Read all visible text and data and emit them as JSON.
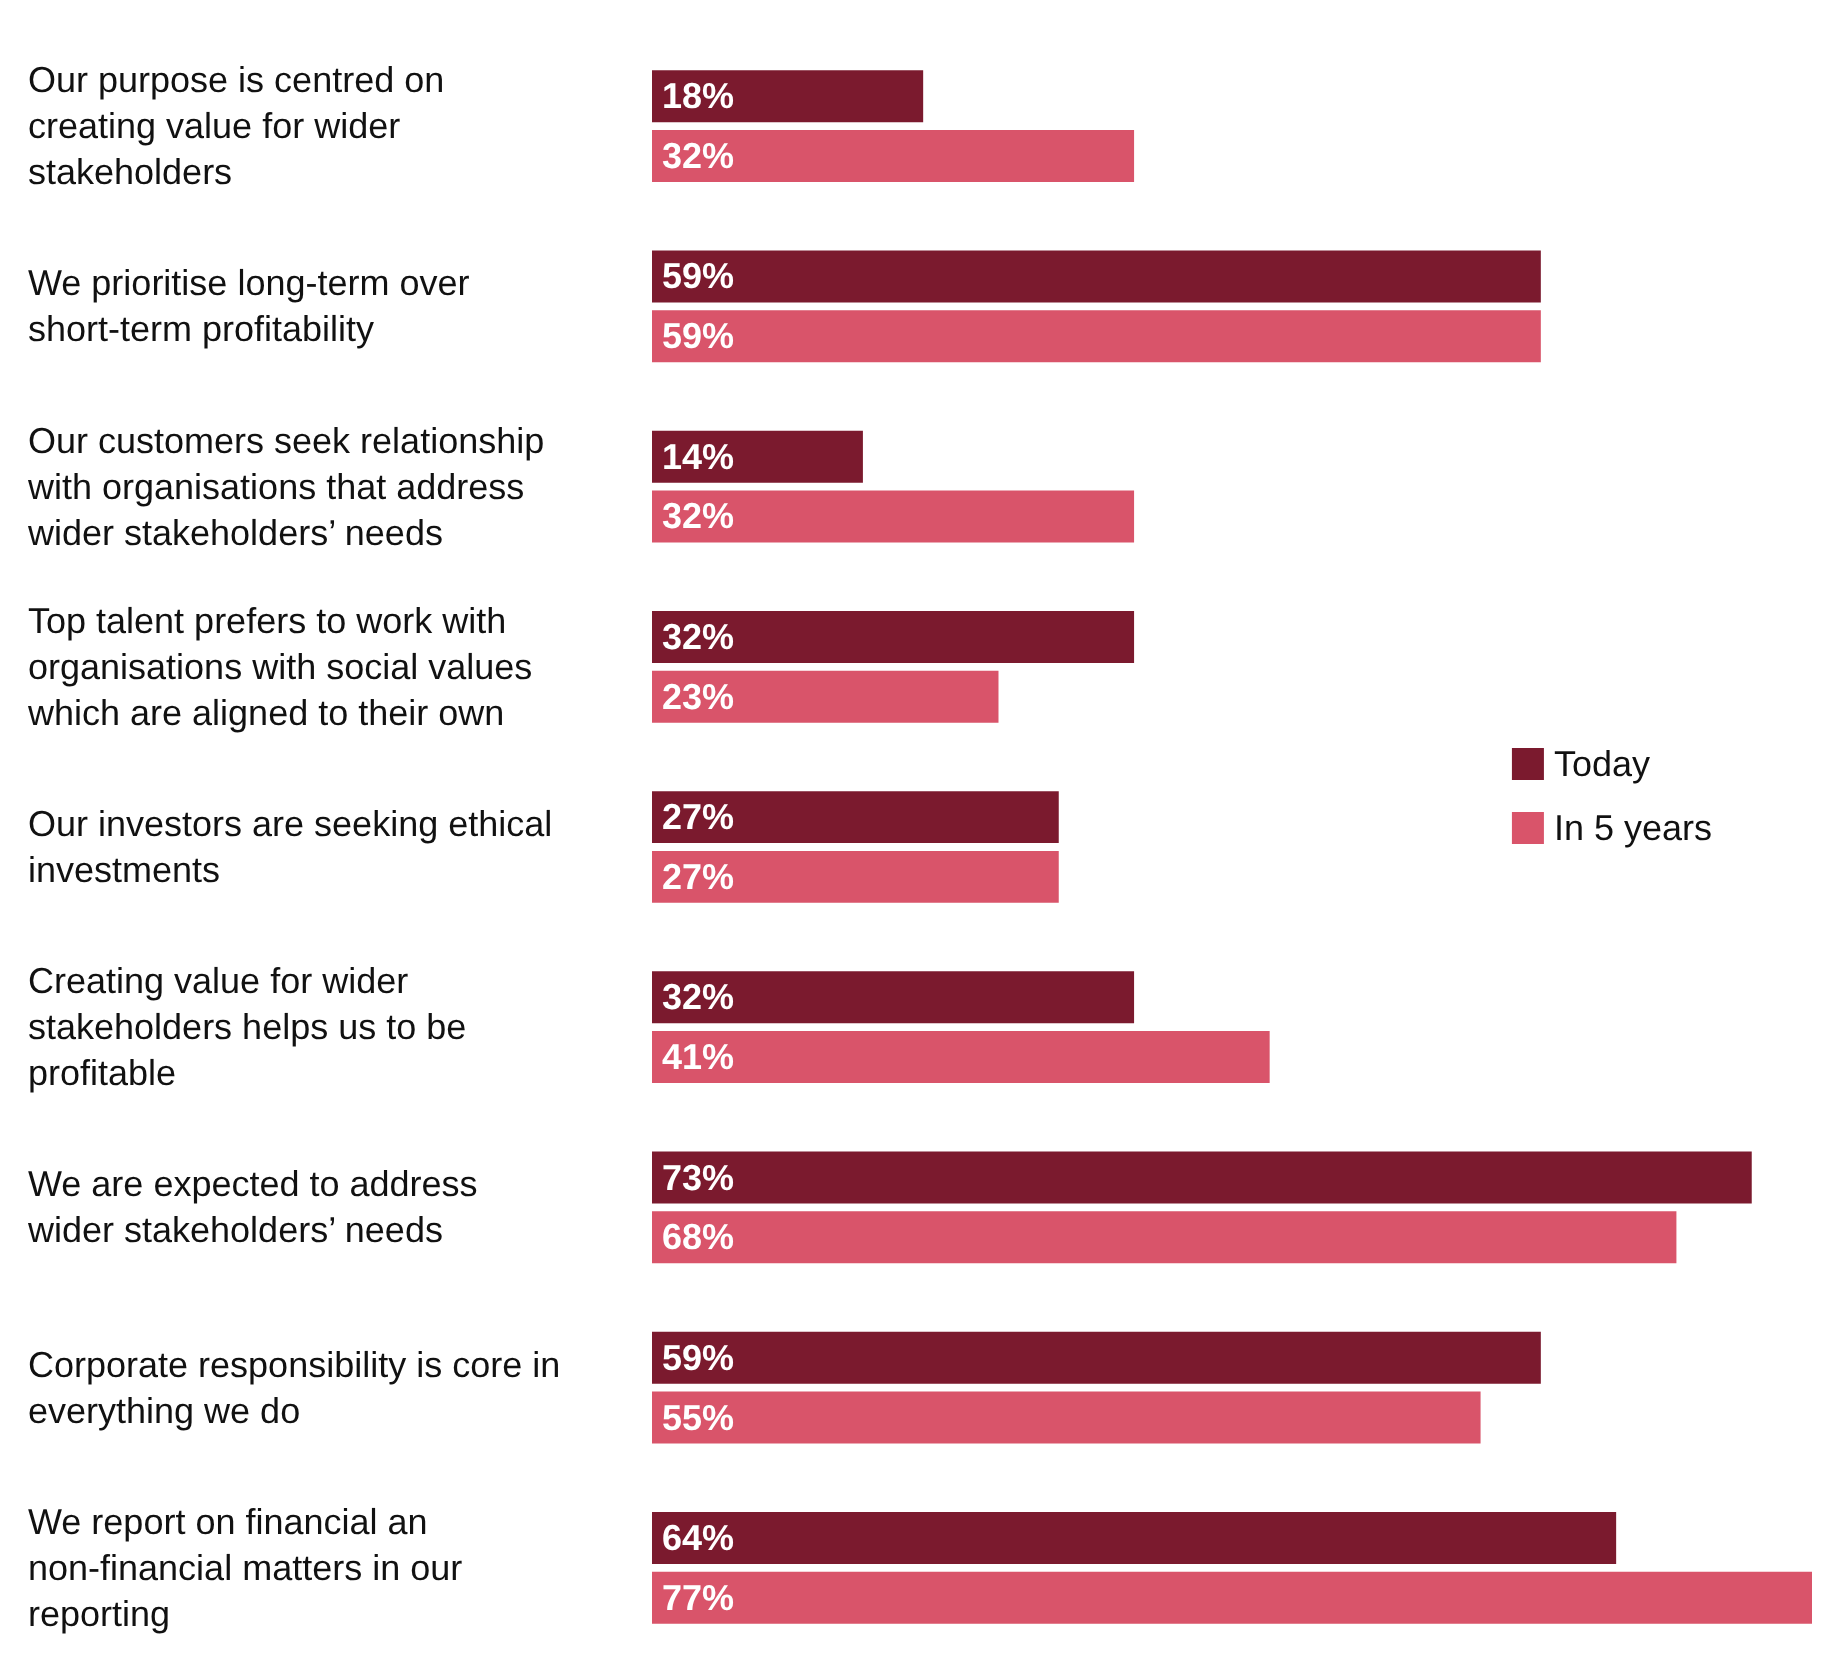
{
  "chart_data": {
    "type": "bar",
    "orientation": "horizontal",
    "legend": "right",
    "categories": [
      "Our purpose is centred on creating value for wider stakeholders",
      "We prioritise long-term over short-term profitability",
      "Our customers seek relationship with organisations that address wider stakeholders’ needs",
      "Top talent prefers to work with organisations with social values which are aligned to their own",
      "Our investors are seeking ethical investments",
      "Creating value for wider stakeholders helps us to be profitable",
      "We are expected to address wider stakeholders’ needs",
      "Corporate responsibility is core in everything we do",
      "We report on financial an non-financial matters in our reporting"
    ],
    "series": [
      {
        "name": "Today",
        "color": "#7b1a2e",
        "values": [
          18,
          59,
          14,
          32,
          27,
          32,
          73,
          59,
          64
        ],
        "value_labels": [
          "18%",
          "59%",
          "14%",
          "32%",
          "27%",
          "32%",
          "73%",
          "59%",
          "64%"
        ]
      },
      {
        "name": "In 5 years",
        "color": "#d9546a",
        "values": [
          32,
          59,
          32,
          23,
          27,
          41,
          68,
          55,
          77
        ],
        "value_labels": [
          "32%",
          "59%",
          "32%",
          "23%",
          "27%",
          "41%",
          "68%",
          "55%",
          "77%"
        ]
      }
    ]
  }
}
